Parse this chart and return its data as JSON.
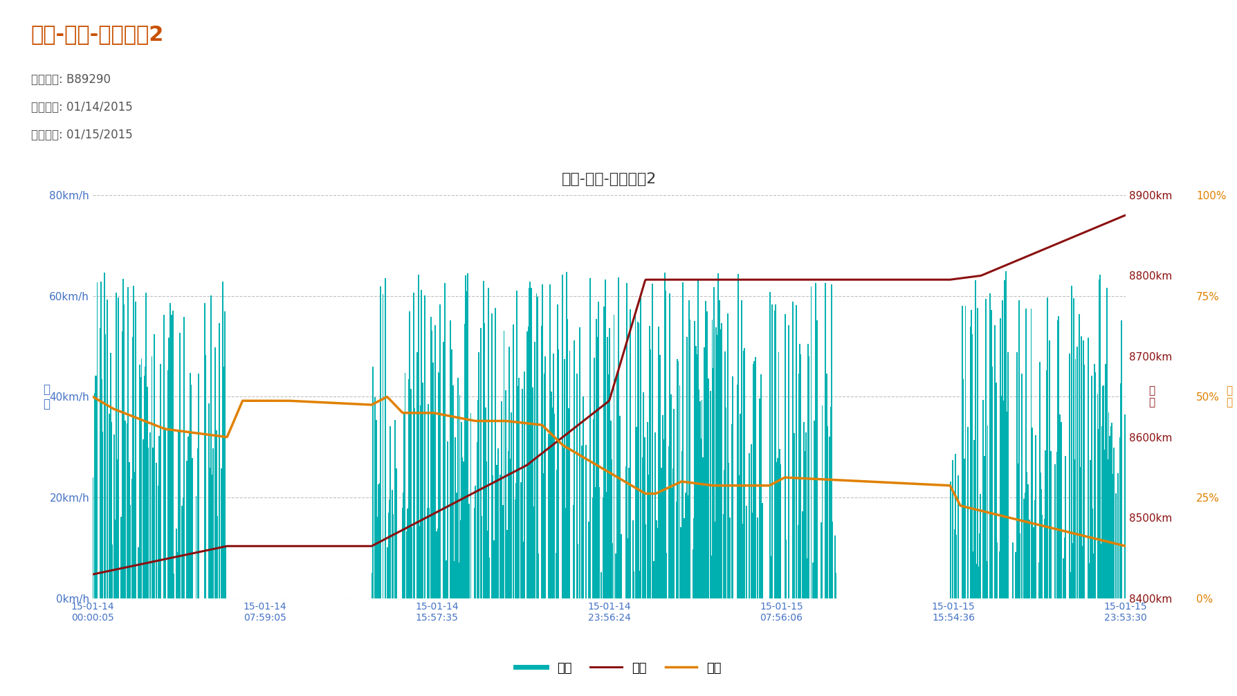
{
  "title_main": "油耗-速度-里程图表2",
  "chart_title": "油耗-速度-里程图表2",
  "label_plate": "车牌号码: B89290",
  "label_start": "开始时间: 01/14/2015",
  "label_end": "结束时间: 01/15/2015",
  "speed_color": "#00b0b0",
  "mileage_color": "#8b1010",
  "fuel_color": "#e08000",
  "background_color": "#ffffff",
  "left_axis_color": "#4472c4",
  "right1_axis_color": "#8b1010",
  "right2_axis_color": "#e08000",
  "speed_ylim": [
    0,
    80
  ],
  "speed_yticks": [
    0,
    20,
    40,
    60,
    80
  ],
  "speed_yticklabels": [
    "0km/h",
    "20km/h",
    "40km/h",
    "60km/h",
    "80km/h"
  ],
  "mileage_ylim": [
    8400,
    8900
  ],
  "mileage_yticks": [
    8400,
    8500,
    8600,
    8700,
    8800,
    8900
  ],
  "mileage_yticklabels": [
    "8400km",
    "8500km",
    "8600km",
    "8700km",
    "8800km",
    "8900km"
  ],
  "fuel_ylim": [
    0,
    100
  ],
  "fuel_yticks": [
    0,
    25,
    50,
    75,
    100
  ],
  "fuel_yticklabels": [
    "0%",
    "25%",
    "50%",
    "75%",
    "100%"
  ],
  "xtick_labels": [
    "15-01-14\n00:00:05",
    "15-01-14\n07:59:05",
    "15-01-14\n15:57:35",
    "15-01-14\n23:56:24",
    "15-01-15\n07:56:06",
    "15-01-15\n15:54:36",
    "15-01-15\n23:53:30"
  ],
  "legend_labels": [
    "速度",
    "里程",
    "油量"
  ],
  "ylabel_speed": "速\n度",
  "title_fontsize": 22,
  "subtitle_fontsize": 12,
  "chart_title_fontsize": 16,
  "axis_label_fontsize": 11,
  "tick_label_fontsize": 10
}
